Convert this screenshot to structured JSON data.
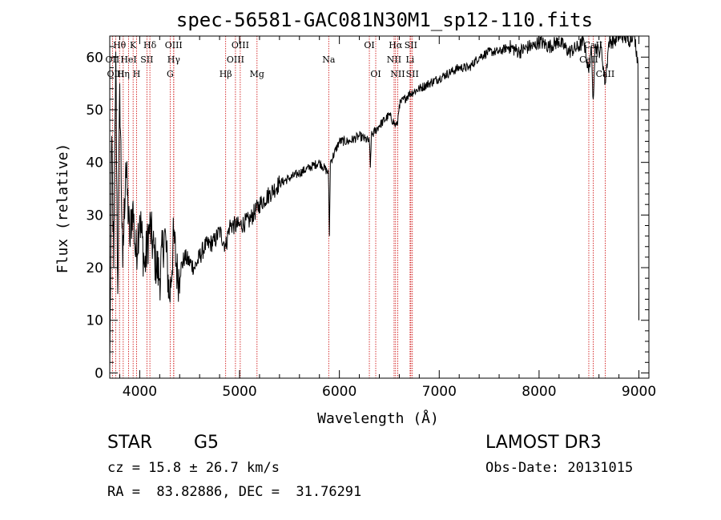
{
  "chart_data": {
    "type": "line",
    "title": "spec-56581-GAC081N30M1_sp12-110.fits",
    "xlabel": "Wavelength (Å)",
    "ylabel": "Flux (relative)",
    "xlim": [
      3700,
      9100
    ],
    "ylim": [
      -1,
      64
    ],
    "xticks": [
      4000,
      5000,
      6000,
      7000,
      8000,
      9000
    ],
    "xtick_labels": [
      "4000",
      "5000",
      "6000",
      "7000",
      "8000",
      "9000"
    ],
    "yticks": [
      0,
      10,
      20,
      30,
      40,
      50,
      60
    ],
    "ytick_labels": [
      "0",
      "10",
      "20",
      "30",
      "40",
      "50",
      "60"
    ],
    "grid": false,
    "series": [
      {
        "name": "spectrum",
        "x": [
          3700,
          3720,
          3740,
          3760,
          3780,
          3800,
          3830,
          3860,
          3900,
          3930,
          3960,
          4000,
          4050,
          4100,
          4150,
          4200,
          4250,
          4300,
          4340,
          4380,
          4450,
          4550,
          4650,
          4750,
          4800,
          4861,
          4900,
          5000,
          5100,
          5200,
          5300,
          5400,
          5500,
          5600,
          5700,
          5800,
          5890,
          5900,
          5910,
          6000,
          6100,
          6200,
          6300,
          6310,
          6320,
          6400,
          6500,
          6563,
          6580,
          6600,
          6700,
          6800,
          6900,
          7000,
          7100,
          7200,
          7300,
          7400,
          7500,
          7600,
          7700,
          7800,
          7900,
          7950,
          8000,
          8100,
          8200,
          8300,
          8400,
          8450,
          8498,
          8520,
          8542,
          8560,
          8600,
          8620,
          8662,
          8700,
          8750,
          8800,
          8850,
          8900,
          8950,
          8990,
          9000
        ],
        "y": [
          0,
          45,
          20,
          61,
          15,
          55,
          20,
          40,
          25,
          32,
          22,
          30,
          20,
          28,
          22,
          18,
          27,
          14,
          26,
          18,
          22,
          20,
          24,
          25,
          27,
          24,
          28,
          28,
          29,
          32,
          34,
          36,
          37,
          38,
          39,
          40,
          38,
          26,
          40,
          44,
          44,
          45,
          44,
          39,
          45,
          47,
          49,
          47,
          47,
          51,
          53,
          54,
          55,
          56,
          57,
          58,
          58,
          60,
          61,
          61,
          62,
          61,
          62,
          62,
          63,
          62,
          63,
          61,
          62,
          63,
          57,
          62,
          52,
          62,
          61,
          62,
          55,
          63,
          63,
          64,
          64,
          63,
          65,
          59,
          10
        ]
      }
    ],
    "lines": [
      {
        "label": "Hθ",
        "x": 3798,
        "row": 0
      },
      {
        "label": "OII",
        "x": 3727,
        "row": 1
      },
      {
        "label": "OIII",
        "x": 3760,
        "row": 2
      },
      {
        "label": "Hη",
        "x": 3835,
        "row": 2
      },
      {
        "label": "HeI",
        "x": 3889,
        "row": 1
      },
      {
        "label": "K",
        "x": 3934,
        "row": 0
      },
      {
        "label": "H",
        "x": 3969,
        "row": 2
      },
      {
        "label": "SII",
        "x": 4072,
        "row": 1
      },
      {
        "label": "Hδ",
        "x": 4102,
        "row": 0
      },
      {
        "label": "OIII",
        "x": 4340,
        "row": 0
      },
      {
        "label": "Hγ",
        "x": 4341,
        "row": 1
      },
      {
        "label": "G",
        "x": 4305,
        "row": 2
      },
      {
        "label": "Hβ",
        "x": 4861,
        "row": 2
      },
      {
        "label": "OIII",
        "x": 5007,
        "row": 0
      },
      {
        "label": "OIII",
        "x": 4959,
        "row": 1
      },
      {
        "label": "Mg",
        "x": 5175,
        "row": 2
      },
      {
        "label": "Na",
        "x": 5893,
        "row": 1
      },
      {
        "label": "OI",
        "x": 6300,
        "row": 0
      },
      {
        "label": "OI",
        "x": 6364,
        "row": 2
      },
      {
        "label": "Hα",
        "x": 6563,
        "row": 0
      },
      {
        "label": "SII",
        "x": 6716,
        "row": 0
      },
      {
        "label": "NII",
        "x": 6548,
        "row": 1
      },
      {
        "label": "Li",
        "x": 6708,
        "row": 1
      },
      {
        "label": "NII",
        "x": 6584,
        "row": 2
      },
      {
        "label": "SII",
        "x": 6731,
        "row": 2
      },
      {
        "label": "CaII",
        "x": 8542,
        "row": 0
      },
      {
        "label": "CaII",
        "x": 8498,
        "row": 1
      },
      {
        "label": "CaII",
        "x": 8662,
        "row": 2
      }
    ]
  },
  "info": {
    "object_class": "STAR",
    "subclass": "G5",
    "survey": "LAMOST DR3",
    "redshift": "cz = 15.8 ± 26.7 km/s",
    "obs_date": "Obs-Date: 20131015",
    "coords": "RA =  83.82886, DEC =  31.76291"
  },
  "colors": {
    "spectrum": "#000000",
    "lines": "#cc0000",
    "axes": "#000000"
  }
}
